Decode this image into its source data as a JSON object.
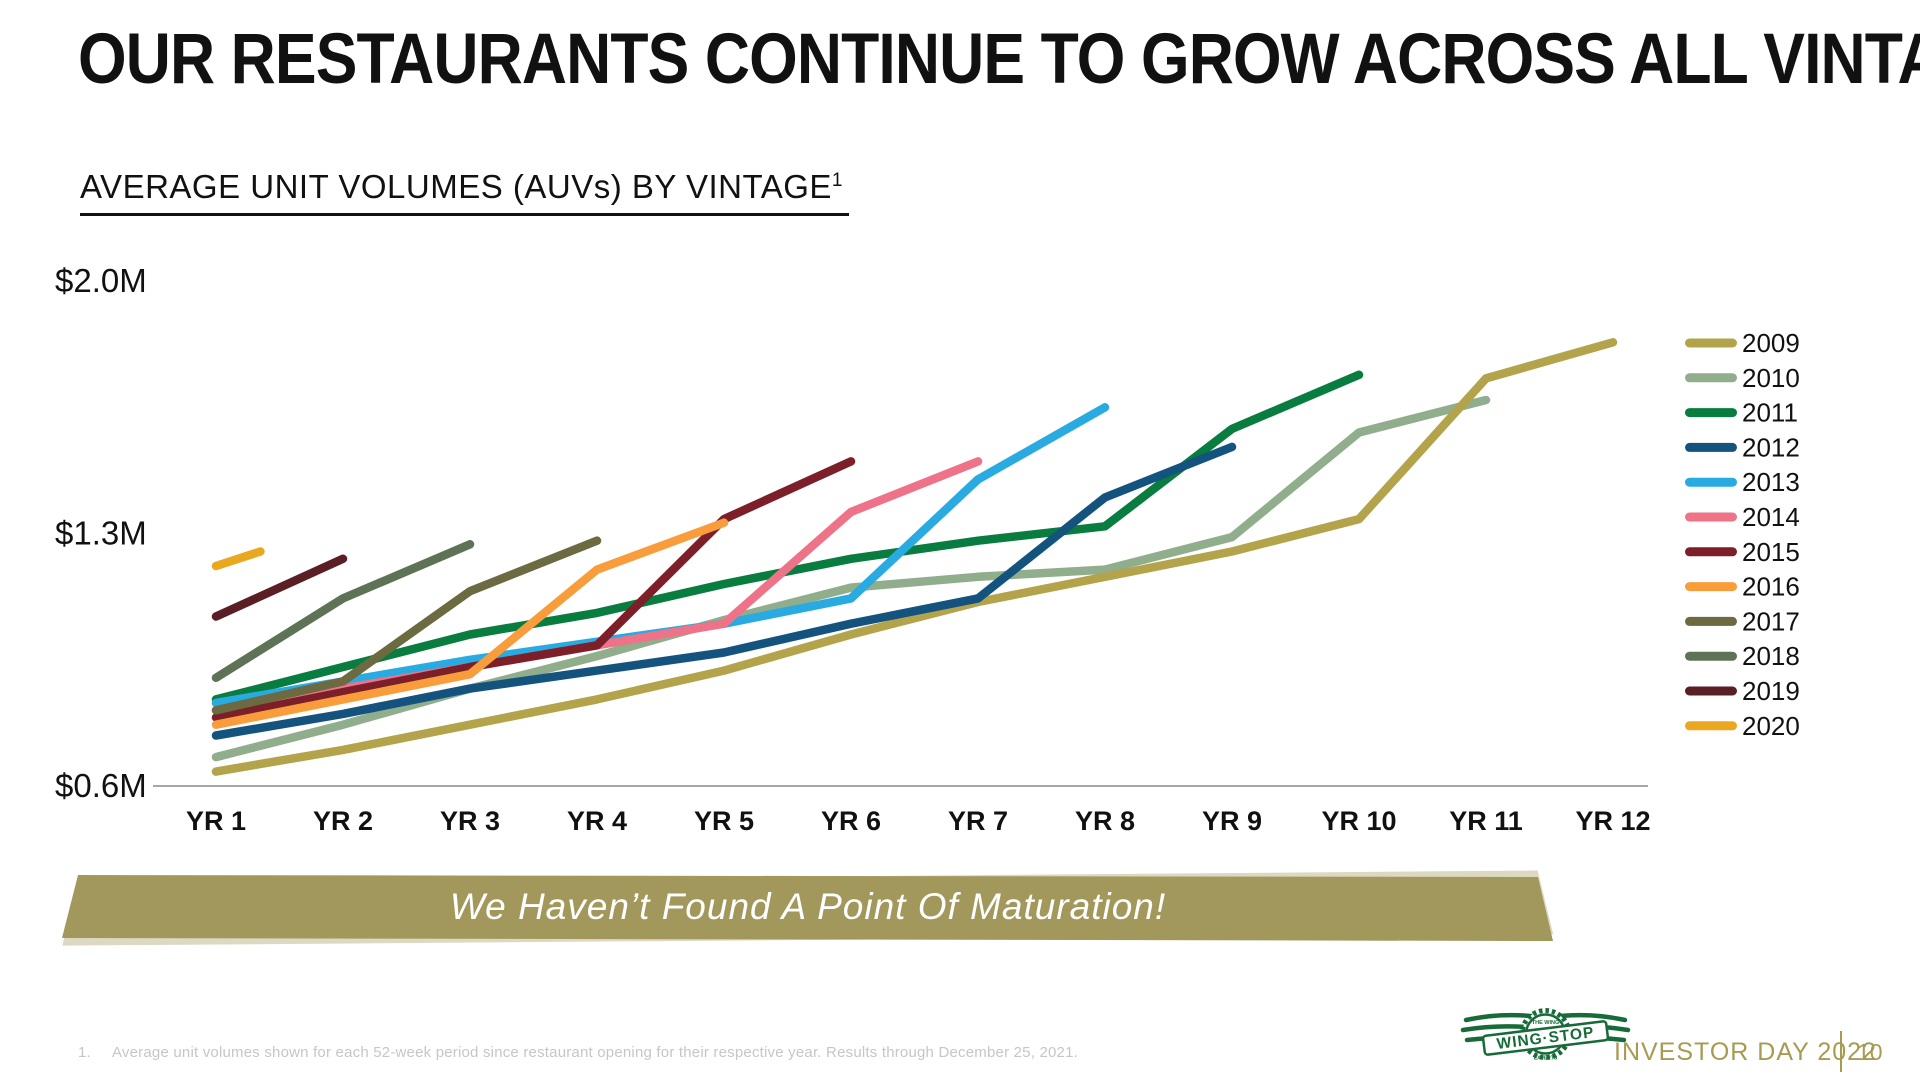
{
  "slide": {
    "title": "OUR RESTAURANTS CONTINUE TO GROW ACROSS ALL VINTAGES",
    "subtitle": "AVERAGE UNIT VOLUMES (AUVs) BY VINTAGE",
    "subtitle_superscript": "1",
    "banner_text": "We Haven’t Found A Point Of Maturation!",
    "footnote_marker": "1.",
    "footnote": "Average unit volumes shown for each 52-week period since restaurant opening for their respective year. Results through December 25, 2021.",
    "footer": {
      "brand_arc_top": "THE WING",
      "brand": "WING·STOP",
      "brand_arc_bottom": "EXPERTS",
      "event": "INVESTOR DAY 2022",
      "page_number": "10"
    }
  },
  "colors": {
    "banner": "#a2985c",
    "banner_shadow": "#dcd8c2",
    "footer_gold": "#a79a51",
    "logo_green": "#176b38",
    "axis_gray": "#a6a6a6",
    "footnote_gray": "#c6c6c6",
    "text": "#111111"
  },
  "chart_data": {
    "type": "line",
    "title": "AVERAGE UNIT VOLUMES (AUVs) BY VINTAGE",
    "unit": "$M AUV",
    "grid": false,
    "legend_position": "right",
    "ylim": [
      0.6,
      2.0
    ],
    "y_ticks": [
      {
        "label": "$2.0M",
        "value": 2.0
      },
      {
        "label": "$1.3M",
        "value": 1.3
      },
      {
        "label": "$0.6M",
        "value": 0.6
      }
    ],
    "x_tick_labels": [
      "YR 1",
      "YR 2",
      "YR 3",
      "YR 4",
      "YR 5",
      "YR 6",
      "YR 7",
      "YR 8",
      "YR 9",
      "YR 10",
      "YR 11",
      "YR 12"
    ],
    "series": [
      {
        "name": "2009",
        "color": "#b3a44c",
        "values": [
          0.64,
          0.7,
          0.77,
          0.84,
          0.92,
          1.02,
          1.11,
          1.18,
          1.25,
          1.34,
          1.73,
          1.83
        ]
      },
      {
        "name": "2010",
        "color": "#90ad8c",
        "values": [
          0.68,
          0.77,
          0.87,
          0.96,
          1.06,
          1.15,
          1.18,
          1.2,
          1.29,
          1.58,
          1.67
        ]
      },
      {
        "name": "2011",
        "color": "#087d3f",
        "values": [
          0.84,
          0.93,
          1.02,
          1.08,
          1.16,
          1.23,
          1.28,
          1.32,
          1.59,
          1.74
        ]
      },
      {
        "name": "2012",
        "color": "#15537f",
        "values": [
          0.74,
          0.8,
          0.87,
          0.92,
          0.97,
          1.05,
          1.12,
          1.4,
          1.54
        ]
      },
      {
        "name": "2013",
        "color": "#29abe2",
        "values": [
          0.83,
          0.89,
          0.95,
          1.0,
          1.05,
          1.12,
          1.45,
          1.65
        ]
      },
      {
        "name": "2014",
        "color": "#ee7389",
        "values": [
          0.81,
          0.87,
          0.93,
          0.99,
          1.05,
          1.36,
          1.5
        ]
      },
      {
        "name": "2015",
        "color": "#7c1f28",
        "values": [
          0.79,
          0.86,
          0.93,
          0.99,
          1.34,
          1.5
        ]
      },
      {
        "name": "2016",
        "color": "#f99d3c",
        "values": [
          0.77,
          0.84,
          0.91,
          1.2,
          1.33
        ]
      },
      {
        "name": "2017",
        "color": "#6c6a40",
        "values": [
          0.81,
          0.89,
          1.14,
          1.28
        ]
      },
      {
        "name": "2018",
        "color": "#5e7356",
        "values": [
          0.9,
          1.12,
          1.27
        ]
      },
      {
        "name": "2019",
        "color": "#591f24",
        "values": [
          1.07,
          1.23
        ]
      },
      {
        "name": "2020",
        "color": "#e9a820",
        "values": [
          1.21,
          1.25
        ],
        "x_years": [
          1,
          1.35
        ]
      }
    ]
  }
}
